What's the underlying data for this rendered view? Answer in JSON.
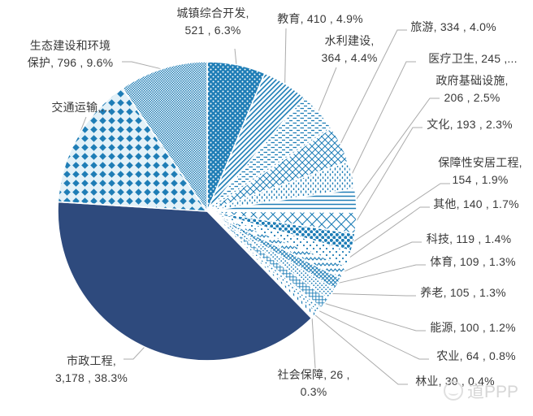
{
  "chart_data": {
    "type": "pie",
    "title": "",
    "legend_position": "outside-data-labels",
    "start_angle_deg": 0,
    "direction": "clockwise",
    "label_format": "name, value , percent",
    "colors": {
      "pattern_blue": "#1e7db6",
      "solid_navy": "#2e4a7d",
      "pattern_bg": "#ffffff",
      "diamond_bg": "#e3f1f8",
      "leader_line": "#ababab",
      "label_text": "#3a3a3a"
    },
    "slices": [
      {
        "id": "urban-comprehensive-development",
        "name": "城镇综合开发",
        "value_text": "521",
        "pct_text": "6.3%",
        "share_pct": 6.3,
        "label_lines": [
          "城镇综合开发,",
          "521 , 6.3%"
        ]
      },
      {
        "id": "education",
        "name": "教育",
        "value_text": "410",
        "pct_text": "4.9%",
        "share_pct": 4.9,
        "label_lines": [
          "教育, 410 , 4.9%"
        ]
      },
      {
        "id": "water-conservancy",
        "name": "水利建设",
        "value_text": "364",
        "pct_text": "4.4%",
        "share_pct": 4.4,
        "label_lines": [
          "水利建设,",
          "364 , 4.4%"
        ]
      },
      {
        "id": "tourism",
        "name": "旅游",
        "value_text": "334",
        "pct_text": "4.0%",
        "share_pct": 4.0,
        "label_lines": [
          "旅游, 334 , 4.0%"
        ]
      },
      {
        "id": "healthcare",
        "name": "医疗卫生",
        "value_text": "245",
        "pct_text": "...",
        "share_pct": 3.0,
        "share_is_estimate": true,
        "label_lines": [
          "医疗卫生, 245 ,..."
        ]
      },
      {
        "id": "government-infrastructure",
        "name": "政府基础设施",
        "value_text": "206",
        "pct_text": "2.5%",
        "share_pct": 2.5,
        "label_lines": [
          "政府基础设施,",
          "206 , 2.5%"
        ]
      },
      {
        "id": "culture",
        "name": "文化",
        "value_text": "193",
        "pct_text": "2.3%",
        "share_pct": 2.3,
        "label_lines": [
          "文化, 193 , 2.3%"
        ]
      },
      {
        "id": "affordable-housing",
        "name": "保障性安居工程",
        "value_text": "154",
        "pct_text": "1.9%",
        "share_pct": 1.9,
        "label_lines": [
          "保障性安居工程,",
          "154 , 1.9%"
        ]
      },
      {
        "id": "other",
        "name": "其他",
        "value_text": "140",
        "pct_text": "1.7%",
        "share_pct": 1.7,
        "label_lines": [
          "其他, 140 , 1.7%"
        ]
      },
      {
        "id": "technology",
        "name": "科技",
        "value_text": "119",
        "pct_text": "1.4%",
        "share_pct": 1.4,
        "label_lines": [
          "科技, 119 , 1.4%"
        ]
      },
      {
        "id": "sports",
        "name": "体育",
        "value_text": "109",
        "pct_text": "1.3%",
        "share_pct": 1.3,
        "label_lines": [
          "体育, 109 , 1.3%"
        ]
      },
      {
        "id": "elderly-care",
        "name": "养老",
        "value_text": "105",
        "pct_text": "1.3%",
        "share_pct": 1.3,
        "label_lines": [
          "养老, 105 , 1.3%"
        ]
      },
      {
        "id": "energy",
        "name": "能源",
        "value_text": "100",
        "pct_text": "1.2%",
        "share_pct": 1.2,
        "label_lines": [
          "能源, 100 , 1.2%"
        ]
      },
      {
        "id": "agriculture",
        "name": "农业",
        "value_text": "64",
        "pct_text": "0.8%",
        "share_pct": 0.8,
        "label_lines": [
          "农业, 64 , 0.8%"
        ]
      },
      {
        "id": "forestry",
        "name": "林业",
        "value_text": "30",
        "pct_text": "0.4%",
        "share_pct": 0.4,
        "label_lines": [
          "林业, 30 , 0.4%"
        ]
      },
      {
        "id": "social-security",
        "name": "社会保障",
        "value_text": "26",
        "pct_text": "0.3%",
        "share_pct": 0.3,
        "label_lines": [
          "社会保障, 26 ,",
          "0.3%"
        ]
      },
      {
        "id": "municipal-engineering",
        "name": "市政工程",
        "value_text": "3,178",
        "pct_text": "38.3%",
        "share_pct": 38.3,
        "label_lines": [
          "市政工程,",
          "3,178 , 38.3%"
        ]
      },
      {
        "id": "transportation",
        "name": "交通运输",
        "value_text": "",
        "pct_text": "",
        "share_pct": 14.4,
        "share_is_estimate": true,
        "label_lines": [
          "交通运输,..."
        ]
      },
      {
        "id": "ecology-environment",
        "name": "生态建设和环境保护",
        "value_text": "796",
        "pct_text": "9.6%",
        "share_pct": 9.6,
        "label_lines": [
          "生态建设和环境",
          "保护, 796 , 9.6%"
        ]
      }
    ]
  },
  "watermark": {
    "logo": "circle-stamp-icon",
    "text": "道PPP"
  }
}
